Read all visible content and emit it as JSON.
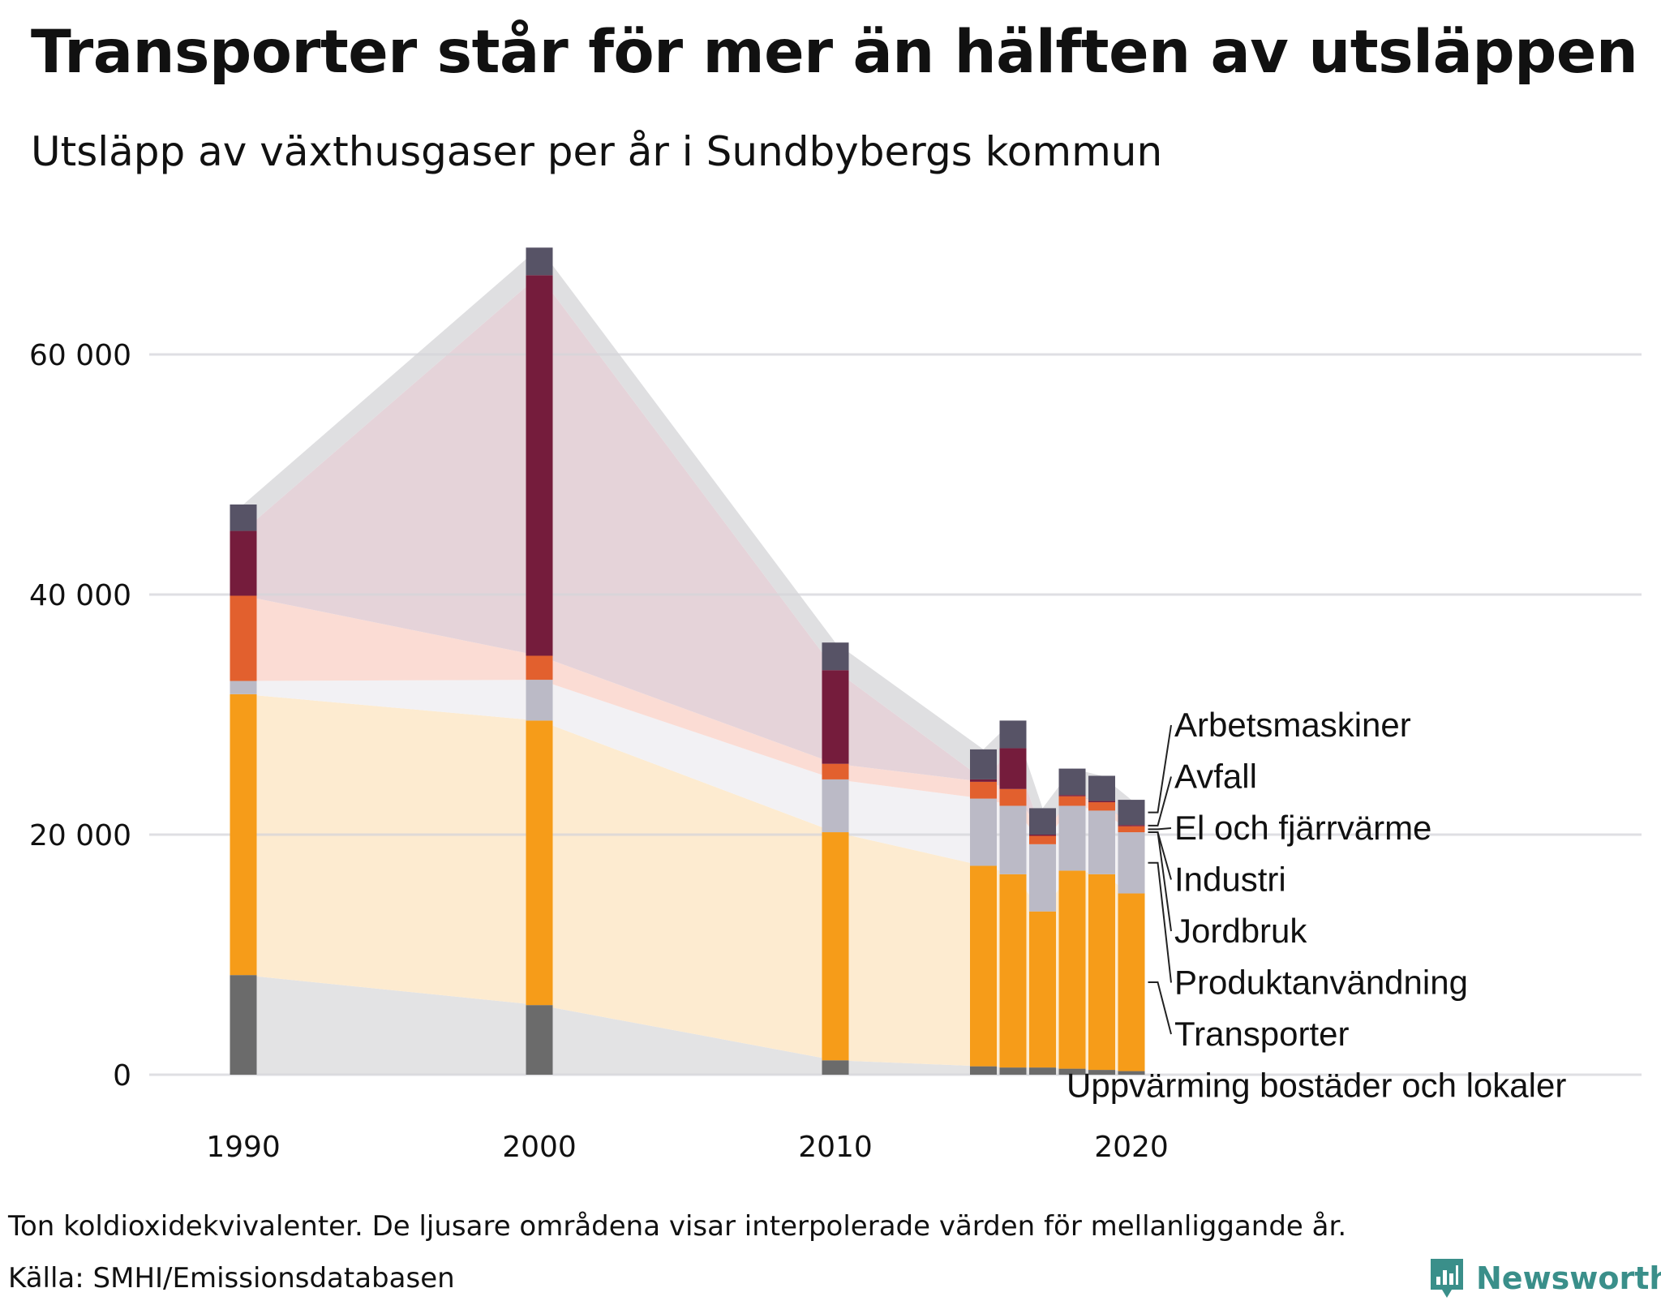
{
  "title": "Transporter står för mer än hälften av utsläppen",
  "subtitle": "Utsläpp av växthusgaser per år i Sundbybergs kommun",
  "note": "Ton koldioxidekvivalenter. De ljusare områdena visar interpolerade värden för mellanliggande år.",
  "source": "Källa: SMHI/Emissionsdatabasen",
  "logo_text": "Newsworthy",
  "chart_data": {
    "type": "bar",
    "stacked": true,
    "x": [
      1990,
      2000,
      2010,
      2015,
      2016,
      2017,
      2018,
      2019,
      2020
    ],
    "x_ticks": [
      "1990",
      "2000",
      "2010",
      "2020"
    ],
    "y_ticks": [
      "0",
      "20 000",
      "40 000",
      "60 000"
    ],
    "ylim": [
      0,
      69000
    ],
    "grid": true,
    "legend_position": "right",
    "series": [
      {
        "name": "Uppvärming bostäder och lokaler",
        "color": "#6b6b6b",
        "area_color": "#e3e3e4",
        "values": [
          8300,
          5800,
          1200,
          700,
          600,
          600,
          500,
          400,
          300
        ]
      },
      {
        "name": "Transporter",
        "color": "#f69c19",
        "area_color": "#fdebd0",
        "values": [
          23400,
          23700,
          19000,
          16700,
          16100,
          13000,
          16500,
          16300,
          14800
        ]
      },
      {
        "name": "Produktanvändning",
        "color": "#bbbac6",
        "area_color": "#f2f1f4",
        "values": [
          1100,
          3400,
          4400,
          5600,
          5700,
          5600,
          5400,
          5300,
          5100
        ]
      },
      {
        "name": "Jordbruk",
        "color": "#b0b0b0",
        "area_color": "#f2f1f4",
        "values": [
          0,
          0,
          0,
          0,
          0,
          0,
          0,
          0,
          0
        ]
      },
      {
        "name": "Industri",
        "color": "#d9d9de",
        "area_color": "#f2f1f4",
        "values": [
          0,
          0,
          0,
          0,
          0,
          0,
          0,
          0,
          0
        ]
      },
      {
        "name": "El och fjärrvärme",
        "color": "#e2602e",
        "area_color": "#fbdcd4",
        "values": [
          7100,
          2000,
          1300,
          1400,
          1400,
          700,
          800,
          700,
          500
        ]
      },
      {
        "name": "Avfall",
        "color": "#751c3c",
        "area_color": "#e5d3d9",
        "values": [
          5400,
          31700,
          7800,
          200,
          3400,
          100,
          100,
          100,
          100
        ]
      },
      {
        "name": "Arbetsmaskiner",
        "color": "#575366",
        "area_color": "#dfdfe1",
        "values": [
          2200,
          2300,
          2300,
          2500,
          2300,
          2200,
          2200,
          2100,
          2100
        ]
      }
    ],
    "legend_order": [
      "Arbetsmaskiner",
      "Avfall",
      "El och fjärrvärme",
      "Industri",
      "Jordbruk",
      "Produktanvändning",
      "Transporter",
      "Uppvärming bostäder och lokaler"
    ]
  }
}
